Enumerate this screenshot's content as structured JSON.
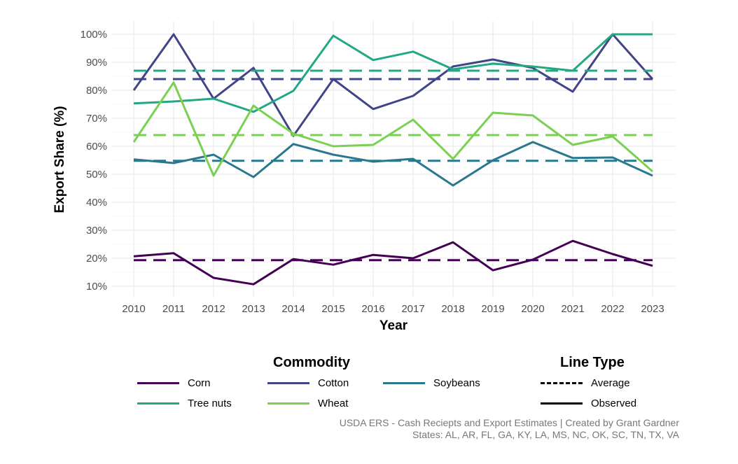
{
  "chart_data": {
    "type": "line",
    "xlabel": "Year",
    "ylabel": "Export Share (%)",
    "x": [
      2010,
      2011,
      2012,
      2013,
      2014,
      2015,
      2016,
      2017,
      2018,
      2019,
      2020,
      2021,
      2022,
      2023
    ],
    "ylim": [
      8,
      102
    ],
    "yticks": [
      10,
      20,
      30,
      40,
      50,
      60,
      70,
      80,
      90,
      100
    ],
    "ytick_labels": [
      "10%",
      "20%",
      "30%",
      "40%",
      "50%",
      "60%",
      "70%",
      "80%",
      "90%",
      "100%"
    ],
    "grid": true,
    "legend_position": "bottom",
    "series": [
      {
        "name": "Corn",
        "color": "#440154",
        "values": [
          20.7,
          21.8,
          13,
          10.7,
          19.7,
          17.7,
          21.2,
          20,
          25.7,
          15.7,
          19.5,
          26.2,
          21.5,
          17.3
        ],
        "average": 19.3
      },
      {
        "name": "Cotton",
        "color": "#414487",
        "values": [
          80,
          100,
          77,
          88,
          63.7,
          84,
          73.3,
          78,
          88.5,
          91,
          88,
          79.5,
          100,
          84
        ],
        "average": 84
      },
      {
        "name": "Soybeans",
        "color": "#2A788E",
        "values": [
          55.3,
          54,
          57,
          49,
          60.8,
          57,
          54.5,
          55.5,
          46,
          55,
          61.5,
          55.8,
          56,
          49.5
        ],
        "average": 54.8
      },
      {
        "name": "Tree nuts",
        "color": "#22A884",
        "values": [
          75.3,
          76,
          77,
          72.3,
          79.8,
          99.5,
          90.8,
          93.8,
          87.5,
          89.5,
          88.5,
          87,
          100,
          100
        ],
        "average": 87
      },
      {
        "name": "Wheat",
        "color": "#7AD151",
        "values": [
          61.5,
          82.8,
          49.5,
          74.5,
          64.5,
          60,
          60.5,
          69.5,
          55.5,
          72,
          71,
          60.5,
          63.5,
          51
        ],
        "average": 64
      }
    ]
  },
  "legend": {
    "commodity_title": "Commodity",
    "linetype_title": "Line Type",
    "linetypes": [
      "Average",
      "Observed"
    ]
  },
  "caption": {
    "line1": "USDA ERS - Cash Reciepts and Export Estimates | Created by Grant Gardner",
    "line2": "States: AL, AR, FL, GA, KY, LA, MS, NC, OK, SC, TN, TX, VA"
  }
}
